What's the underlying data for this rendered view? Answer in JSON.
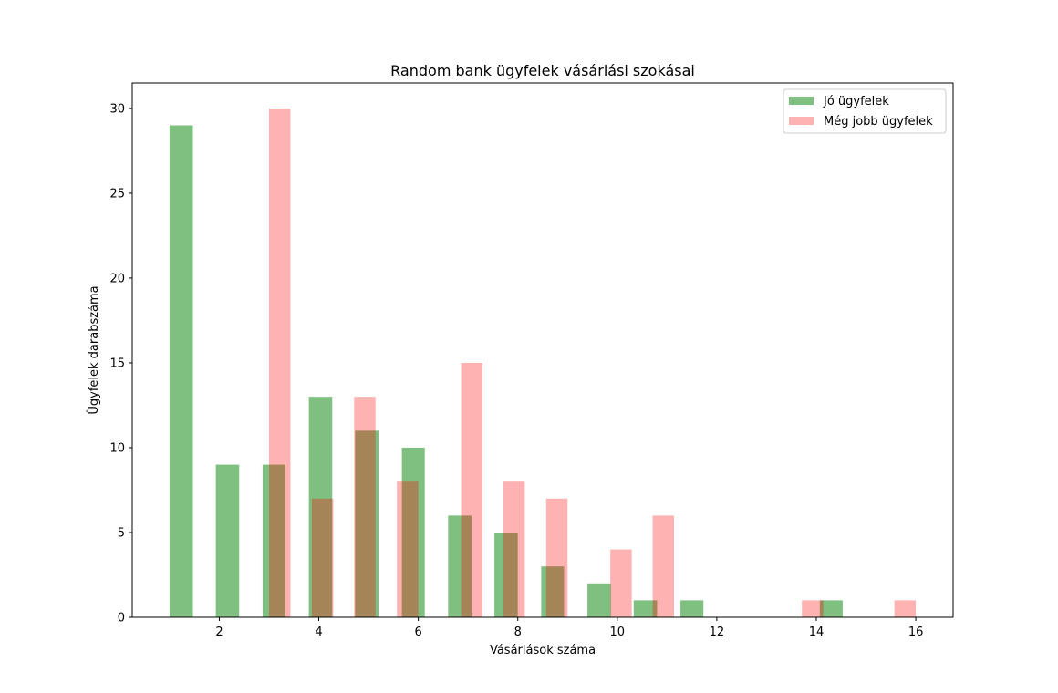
{
  "chart_data": {
    "type": "bar",
    "title": "Random bank ügyfelek vásárlási szokásai",
    "xlabel": "Vásárlások száma",
    "ylabel": "Ügyfelek darabszáma",
    "xlim": [
      0.25,
      16.75
    ],
    "ylim": [
      0,
      31.5
    ],
    "xticks": [
      "2",
      "4",
      "6",
      "8",
      "10",
      "12",
      "14",
      "16"
    ],
    "yticks": [
      "0",
      "5",
      "10",
      "15",
      "20",
      "25",
      "30"
    ],
    "grid": false,
    "legend_position": "top-right",
    "series": [
      {
        "name": "Jó ügyfelek",
        "color": "#008000",
        "opacity": 0.5,
        "bars": [
          {
            "x0": 1.0,
            "x1": 1.47,
            "value": 29
          },
          {
            "x0": 1.93,
            "x1": 2.4,
            "value": 9
          },
          {
            "x0": 2.87,
            "x1": 3.33,
            "value": 9
          },
          {
            "x0": 3.8,
            "x1": 4.27,
            "value": 13
          },
          {
            "x0": 4.73,
            "x1": 5.2,
            "value": 11
          },
          {
            "x0": 5.67,
            "x1": 6.13,
            "value": 10
          },
          {
            "x0": 6.6,
            "x1": 7.07,
            "value": 6
          },
          {
            "x0": 7.53,
            "x1": 8.0,
            "value": 5
          },
          {
            "x0": 8.47,
            "x1": 8.93,
            "value": 3
          },
          {
            "x0": 9.4,
            "x1": 9.87,
            "value": 2
          },
          {
            "x0": 10.33,
            "x1": 10.8,
            "value": 1
          },
          {
            "x0": 11.27,
            "x1": 11.73,
            "value": 1
          },
          {
            "x0": 14.07,
            "x1": 14.53,
            "value": 1
          }
        ]
      },
      {
        "name": "Még jobb ügyfelek",
        "color": "#ff0000",
        "opacity": 0.3,
        "bars": [
          {
            "x0": 3.0,
            "x1": 3.43,
            "value": 30
          },
          {
            "x0": 3.86,
            "x1": 4.29,
            "value": 7
          },
          {
            "x0": 4.71,
            "x1": 5.14,
            "value": 13
          },
          {
            "x0": 5.57,
            "x1": 6.0,
            "value": 8
          },
          {
            "x0": 6.86,
            "x1": 7.29,
            "value": 15
          },
          {
            "x0": 7.71,
            "x1": 8.14,
            "value": 8
          },
          {
            "x0": 8.57,
            "x1": 9.0,
            "value": 7
          },
          {
            "x0": 9.86,
            "x1": 10.29,
            "value": 4
          },
          {
            "x0": 10.71,
            "x1": 11.14,
            "value": 6
          },
          {
            "x0": 13.71,
            "x1": 14.14,
            "value": 1
          },
          {
            "x0": 15.57,
            "x1": 16.0,
            "value": 1
          }
        ]
      }
    ]
  }
}
